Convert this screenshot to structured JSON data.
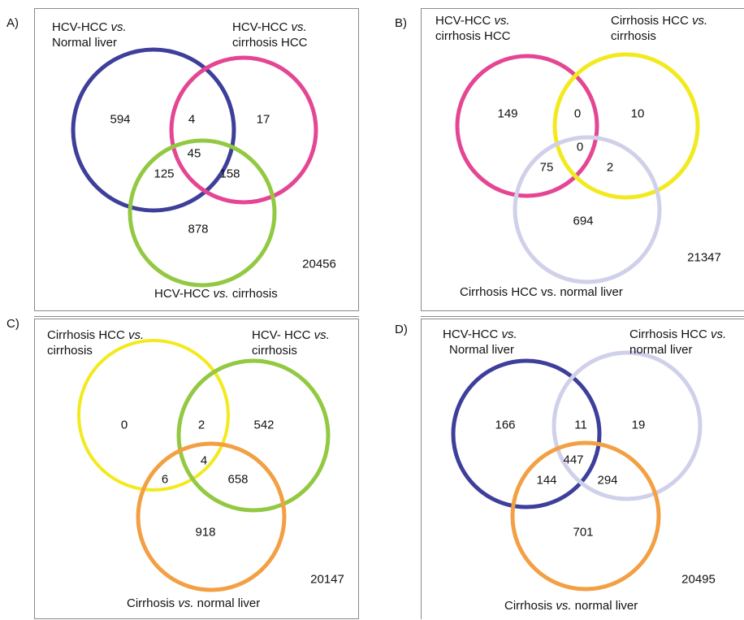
{
  "panels": [
    {
      "letter": "A)",
      "sets": [
        {
          "name": "HCV-HCC vs. Normal liver",
          "line1_a": "HCV-HCC ",
          "line1_i": "vs.",
          "line2": "Normal liver",
          "color": "#3d3f9a"
        },
        {
          "name": "HCV-HCC vs. cirrhosis HCC",
          "line1_a": "HCV-HCC ",
          "line1_i": "vs.",
          "line2": "cirrhosis HCC",
          "color": "#e44694"
        },
        {
          "name": "HCV-HCC vs. cirrhosis",
          "line1_a": "HCV-HCC ",
          "line1_i": "vs.",
          "line1_b": " cirrhosis",
          "line2": "",
          "color": "#93c942"
        }
      ],
      "counts": {
        "only_1": "594",
        "only_2": "17",
        "only_3": "878",
        "r12": "4",
        "r13": "125",
        "r23": "158",
        "r123": "45",
        "outside": "20456"
      }
    },
    {
      "letter": "B)",
      "sets": [
        {
          "name": "HCV-HCC vs. cirrhosis HCC",
          "line1_a": "HCV-HCC ",
          "line1_i": "vs.",
          "line2": "cirrhosis HCC",
          "color": "#e44694"
        },
        {
          "name": "Cirrhosis HCC vs. cirrhosis",
          "line1_a": "Cirrhosis HCC  ",
          "line1_i": "vs.",
          "line2": "cirrhosis",
          "color": "#f2ea1e"
        },
        {
          "name": "Cirrhosis HCC vs. normal liver",
          "line1_a": "Cirrhosis HCC vs. normal liver",
          "line1_i": "",
          "line2": "",
          "color": "#d0d0ea"
        }
      ],
      "counts": {
        "only_1": "149",
        "only_2": "10",
        "only_3": "694",
        "r12": "0",
        "r13": "75",
        "r23": "2",
        "r123": "0",
        "outside": "21347"
      }
    },
    {
      "letter": "C)",
      "sets": [
        {
          "name": "Cirrhosis HCC vs. cirrhosis",
          "line1_a": "Cirrhosis HCC  ",
          "line1_i": "vs.",
          "line2": "cirrhosis",
          "color": "#f2ea1e"
        },
        {
          "name": "HCV- HCC vs. cirrhosis",
          "line1_a": "HCV- HCC ",
          "line1_i": "vs.",
          "line2": "cirrhosis",
          "color": "#93c942"
        },
        {
          "name": "Cirrhosis vs. normal liver",
          "line1_a": "Cirrhosis   ",
          "line1_i": "vs.",
          "line1_b": " normal liver",
          "line2": "",
          "color": "#f2a043"
        }
      ],
      "counts": {
        "only_1": "0",
        "only_2": "542",
        "only_3": "918",
        "r12": "2",
        "r13": "6",
        "r23": "658",
        "r123": "4",
        "outside": "20147"
      }
    },
    {
      "letter": "D)",
      "sets": [
        {
          "name": "HCV-HCC vs. Normal liver",
          "line1_a": "HCV-HCC ",
          "line1_i": "vs.",
          "line2": "Normal liver",
          "color": "#3d3f9a"
        },
        {
          "name": "Cirrhosis HCC vs. normal liver",
          "line1_a": "Cirrhosis HCC  ",
          "line1_i": "vs.",
          "line2": "normal liver",
          "color": "#d0d0ea"
        },
        {
          "name": "Cirrhosis vs. normal liver",
          "line1_a": "Cirrhosis   ",
          "line1_i": "vs.",
          "line1_b": " normal liver",
          "line2": "",
          "color": "#f2a043"
        }
      ],
      "counts": {
        "only_1": "166",
        "only_2": "19",
        "only_3": "701",
        "r12": "11",
        "r13": "144",
        "r23": "294",
        "r123": "447",
        "outside": "20495"
      }
    }
  ]
}
